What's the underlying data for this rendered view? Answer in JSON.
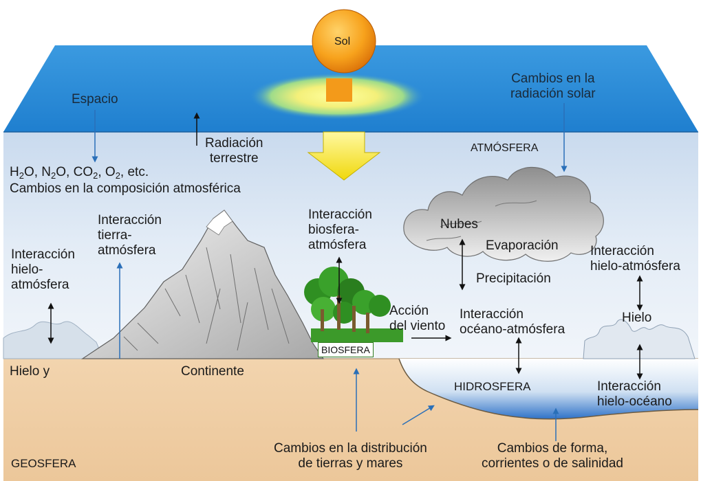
{
  "sun": {
    "label": "Sol"
  },
  "space": {
    "label": "Espacio"
  },
  "solar_change": {
    "line1": "Cambios en la",
    "line2": "radiación solar"
  },
  "terrestrial": {
    "line1": "Radiación",
    "line2": "terrestre"
  },
  "atmosphere": {
    "label": "ATMÓSFERA"
  },
  "composition": {
    "formula": {
      "h": "H",
      "h_sub": "2",
      "o": "O, N",
      "n_sub": "2",
      "o2": "O, CO",
      "co_sub": "2",
      "comma": ", O",
      "o_sub": "2",
      "etc": ", etc."
    },
    "line2": "Cambios en la composición atmosférica"
  },
  "ice_atm_left": {
    "line1": "Interacción",
    "line2": "hielo-",
    "line3": "atmósfera"
  },
  "land_atm": {
    "line1": "Interacción",
    "line2": "tierra-",
    "line3": "atmósfera"
  },
  "bio_atm": {
    "line1": "Interacción",
    "line2": "biosfera-",
    "line3": "atmósfera"
  },
  "clouds": {
    "label": "Nubes"
  },
  "evaporation": {
    "label": "Evaporación"
  },
  "precipitation": {
    "label": "Precipitación"
  },
  "ice_atm_right": {
    "line1": "Interacción",
    "line2": "hielo-atmósfera"
  },
  "ice": {
    "label": "Hielo"
  },
  "wind": {
    "line1": "Acción",
    "line2": "del viento"
  },
  "ocean_atm": {
    "line1": "Interacción",
    "line2": "océano-atmósfera"
  },
  "biosphere": {
    "label": "BIOSFERA"
  },
  "ice_land": {
    "label": "Hielo y"
  },
  "continent": {
    "label": "Continente"
  },
  "hydrosphere": {
    "label": "HIDROSFERA"
  },
  "ice_ocean": {
    "line1": "Interacción",
    "line2": "hielo-océano"
  },
  "distribution": {
    "line1": "Cambios en la distribución",
    "line2": "de tierras y mares"
  },
  "form": {
    "line1": "Cambios de forma,",
    "line2": "corrientes o de salinidad"
  },
  "geosphere": {
    "label": "GEOSFERA"
  },
  "colors": {
    "space": "#2f8fd8",
    "sky": "#dfe9f4",
    "ground": "#efcfa6",
    "ocean": "#4a8ed4",
    "sun": "#f39a1a",
    "arrow_yellow": "#f3e21a",
    "vegetation": "#2f8f22",
    "pointer": "#2a6fb8"
  }
}
